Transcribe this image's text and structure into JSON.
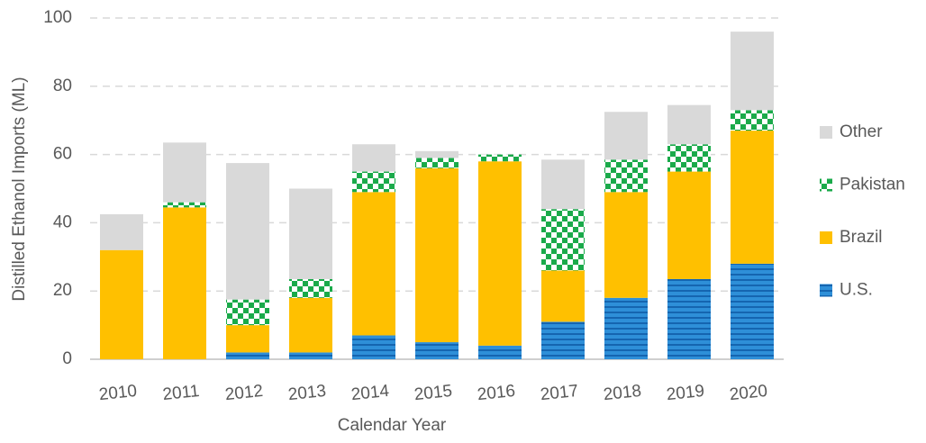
{
  "chart_data": {
    "type": "stacked_bar",
    "x_label": "Calendar Year",
    "y_label": "Distilled Ethanol Imports (ML)",
    "categories": [
      "2010",
      "2011",
      "2012",
      "2013",
      "2014",
      "2015",
      "2016",
      "2017",
      "2018",
      "2019",
      "2020"
    ],
    "series": [
      {
        "name": "U.S.",
        "color": "#2e8fd8",
        "pattern": "stripes",
        "values": [
          0,
          0,
          2,
          2,
          7,
          5,
          4,
          11,
          18,
          23.5,
          28
        ]
      },
      {
        "name": "Brazil",
        "color": "#ffc000",
        "pattern": "solid",
        "values": [
          32,
          44.5,
          8,
          16,
          42,
          51,
          54,
          15,
          31,
          31.5,
          39
        ]
      },
      {
        "name": "Pakistan",
        "color": "#1aaa4a",
        "pattern": "checker",
        "values": [
          0,
          1.5,
          7.5,
          5.5,
          6,
          3,
          2,
          18,
          9.5,
          8,
          6
        ]
      },
      {
        "name": "Other",
        "color": "#d9d9d9",
        "pattern": "solid",
        "values": [
          10.5,
          17.5,
          40,
          26.5,
          8,
          2,
          0,
          14.5,
          14,
          11.5,
          23
        ]
      }
    ],
    "ylim": [
      0,
      100
    ],
    "yticks": [
      0,
      20,
      40,
      60,
      80,
      100
    ],
    "grid": true,
    "legend": "right"
  }
}
